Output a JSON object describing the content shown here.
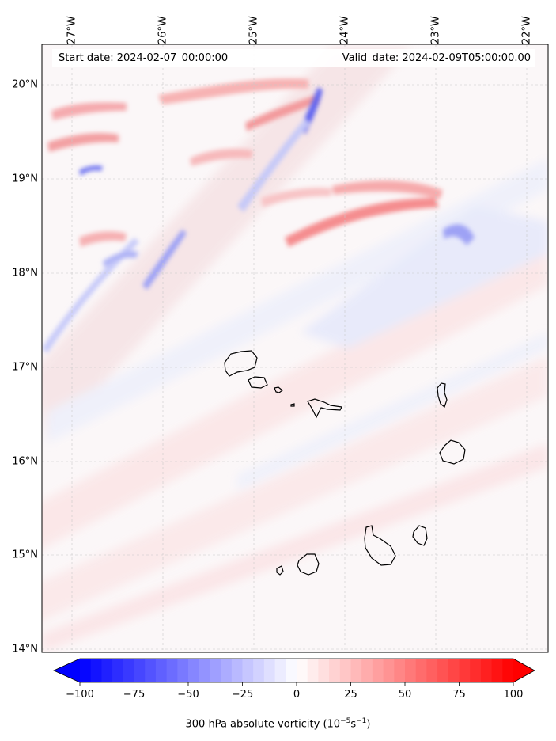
{
  "header": {
    "start_date": "Start date: 2024-02-07_00:00:00",
    "valid_date": "Valid_date: 2024-02-09T05:00:00.00"
  },
  "longitude_labels": [
    "27°W",
    "26°W",
    "25°W",
    "24°W",
    "23°W",
    "22°W"
  ],
  "latitude_labels": [
    "20°N",
    "19°N",
    "18°N",
    "17°N",
    "16°N",
    "15°N",
    "14°N"
  ],
  "colorbar": {
    "ticks": [
      "−100",
      "−75",
      "−50",
      "−25",
      "0",
      "25",
      "50",
      "75",
      "100"
    ],
    "label": "300 hPa absolute vorticity (10",
    "label_exp1": "−5",
    "label_mid": "s",
    "label_exp2": "−1",
    "label_end": ")",
    "min_color": "#0000ff",
    "mid_color": "#ffffff",
    "max_color": "#ff0000",
    "range": [
      -100,
      100
    ]
  },
  "map": {
    "background_color": "#fbf8f8",
    "islands": [
      "Santo Antão",
      "São Vicente",
      "Santa Luzia",
      "Branco",
      "São Nicolau",
      "Sal",
      "Boa Vista",
      "Maio",
      "Santiago",
      "Fogo",
      "Brava"
    ]
  }
}
